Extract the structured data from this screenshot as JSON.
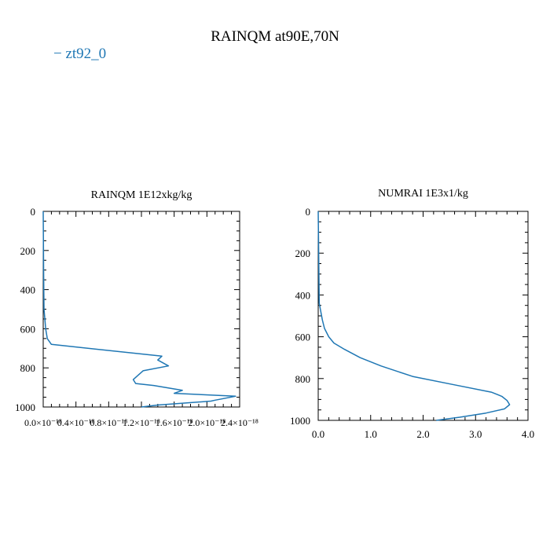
{
  "title": "RAINQM at90E,70N",
  "legend": {
    "line": "−",
    "label": "zt92_0",
    "color": "#1f77b4"
  },
  "chart_data": [
    {
      "type": "line",
      "title": "RAINQM  1E12xkg/kg",
      "orientation": "profile",
      "x_tick_labels": [
        "0.0×10⁻¹⁸",
        "0.4×10⁻¹⁸",
        "0.8×10⁻¹⁸",
        "1.2×10⁻¹⁸",
        "1.6×10⁻¹⁸",
        "2.0×10⁻¹⁸",
        "2.4×10⁻¹⁸"
      ],
      "x_ticks": [
        0,
        0.4,
        0.8,
        1.2,
        1.6,
        2.0,
        2.4
      ],
      "xlim": [
        0,
        2.4
      ],
      "y_ticks": [
        0,
        200,
        400,
        600,
        800,
        1000
      ],
      "y_tick_labels": [
        "0",
        "200",
        "400",
        "600",
        "800",
        "1000"
      ],
      "ylim": [
        0,
        1000
      ],
      "y_inverted": true,
      "series": [
        {
          "color": "#1f77b4",
          "x": [
            0,
            0.005,
            0.01,
            0.02,
            0.03,
            0.05,
            0.1,
            1.45,
            1.4,
            1.53,
            1.22,
            1.1,
            1.13,
            1.35,
            1.7,
            1.6,
            2.35,
            2.1,
            2.05,
            1.4,
            1.2
          ],
          "y": [
            0,
            300,
            500,
            550,
            600,
            650,
            680,
            740,
            760,
            790,
            815,
            860,
            880,
            890,
            915,
            930,
            945,
            965,
            970,
            990,
            1000
          ]
        }
      ]
    },
    {
      "type": "line",
      "title": "NUMRAI  1E3x1/kg",
      "orientation": "profile",
      "x_ticks": [
        0,
        1,
        2,
        3,
        4
      ],
      "x_tick_labels": [
        "0.0",
        "1.0",
        "2.0",
        "3.0",
        "4.0"
      ],
      "xlim": [
        0,
        4
      ],
      "y_ticks": [
        0,
        200,
        400,
        600,
        800,
        1000
      ],
      "y_tick_labels": [
        "0",
        "200",
        "400",
        "600",
        "800",
        "1000"
      ],
      "ylim": [
        0,
        1000
      ],
      "y_inverted": true,
      "series": [
        {
          "color": "#1f77b4",
          "x": [
            0,
            0.02,
            0.05,
            0.08,
            0.12,
            0.2,
            0.3,
            0.5,
            0.8,
            1.2,
            1.8,
            2.6,
            3.3,
            3.5,
            3.6,
            3.65,
            3.55,
            3.2,
            2.7,
            2.25
          ],
          "y": [
            0,
            440,
            480,
            520,
            560,
            600,
            630,
            660,
            700,
            740,
            790,
            830,
            865,
            885,
            905,
            925,
            945,
            965,
            985,
            1000
          ]
        }
      ]
    }
  ]
}
